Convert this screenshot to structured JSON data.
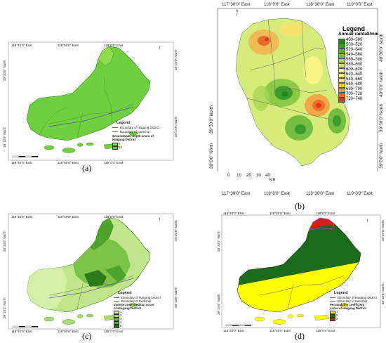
{
  "panel_a": {
    "caption": "(a)",
    "top_ticks": [
      "118°40′0″ East",
      "118°50′0″ East",
      "119°0′0″ East"
    ],
    "bottom_ticks": [
      "118°40′0″ East",
      "118°50′0″ East",
      "119°0′0″ East"
    ],
    "left_ticks": [
      "39°20′0″ North",
      "39°10′0″ North"
    ],
    "right_ticks": [
      "39°20′0″ North",
      "39°10′0″ North"
    ],
    "legend": {
      "title": "Legend",
      "line1": "Boundary of Haigang District",
      "line2": "Boundary of township",
      "score_title": "Groundwater depth score of Haigang District",
      "items": [
        {
          "label": "8",
          "color": "#8fdc4c"
        },
        {
          "label": "10",
          "color": "#5fc63a"
        }
      ]
    }
  },
  "panel_b": {
    "caption": "(b)",
    "top_ticks": [
      "117°30′0″ East",
      "118°0′0″ East",
      "118°30′0″ East",
      "119°0′0″ East"
    ],
    "bottom_ticks": [
      "117°30′0″ East",
      "118°0′0″ East",
      "118°30′0″ East",
      "119°0′0″ East"
    ],
    "right_ticks": [
      "40°30′0″ North",
      "40°0′0″ North",
      "39°30′0″ North",
      "39°0′0″ North"
    ],
    "left_ticks": [
      "39°30′0″ North",
      "39°0′0″ North"
    ],
    "scale_labels": [
      "0",
      "10",
      "20",
      "30",
      "40"
    ],
    "scale_unit": "km",
    "north": "N",
    "legend": {
      "title": "Legend",
      "subtitle": "Annual rainfall/mm",
      "items": [
        {
          "label": "480–500",
          "color": "#1f8a1f"
        },
        {
          "label": "500–520",
          "color": "#3a9e2a"
        },
        {
          "label": "520–540",
          "color": "#5cb236"
        },
        {
          "label": "540–560",
          "color": "#7fc441"
        },
        {
          "label": "560–580",
          "color": "#a6d653"
        },
        {
          "label": "580–600",
          "color": "#c9e566"
        },
        {
          "label": "600–620",
          "color": "#e8f27a"
        },
        {
          "label": "620–640",
          "color": "#fdf68a"
        },
        {
          "label": "640–660",
          "color": "#fde36b"
        },
        {
          "label": "660–680",
          "color": "#fbc14f"
        },
        {
          "label": "680–700",
          "color": "#f69b3c"
        },
        {
          "label": "700–720",
          "color": "#ee6e2a"
        },
        {
          "label": "720–740",
          "color": "#d93a1c"
        }
      ]
    }
  },
  "panel_c": {
    "caption": "(c)",
    "top_ticks": [
      "118°40′0″ East",
      "118°50′0″ East",
      "119°0′0″ East"
    ],
    "bottom_ticks": [
      "118°40′0″ East",
      "118°50′0″ East",
      "119°0′0″ East"
    ],
    "left_ticks": [
      "39°20′0″ North",
      "39°10′0″ North"
    ],
    "right_ticks": [
      "39°20′0″ North",
      "39°10′0″ North"
    ],
    "legend": {
      "title": "Legend",
      "line1": "Boundary of Haigang District",
      "line2": "Boundary of township",
      "score_title": "Vadose zone medium score of Haigang District",
      "items": [
        {
          "label": "1",
          "color": "#d6efa8"
        },
        {
          "label": "2",
          "color": "#a9db73"
        },
        {
          "label": "3",
          "color": "#7bc447"
        },
        {
          "label": "4",
          "color": "#4ea32c"
        },
        {
          "label": "5",
          "color": "#2d7a1d"
        }
      ]
    }
  },
  "panel_d": {
    "caption": "(d)",
    "top_ticks": [
      "118°40′0″ East",
      "118°50′0″ East",
      "119°0′0″ East"
    ],
    "bottom_ticks": [
      "118°40′0″ East",
      "118°50′0″ East",
      "119°0′0″ East"
    ],
    "left_ticks": [
      "39°20′0″ North",
      "39°10′0″ North"
    ],
    "right_ticks": [
      "39°20′0″ North",
      "39°10′0″ North"
    ],
    "legend": {
      "title": "Legend",
      "line1": "Boundary of Haigang District",
      "line2": "Boundary of township",
      "score_title": "Permeability coefficient score of Haigang District",
      "items": [
        {
          "label": "1",
          "color": "#ffff00"
        },
        {
          "label": "2",
          "color": "#1a6b1a"
        },
        {
          "label": "3",
          "color": "#d02020"
        }
      ]
    }
  }
}
